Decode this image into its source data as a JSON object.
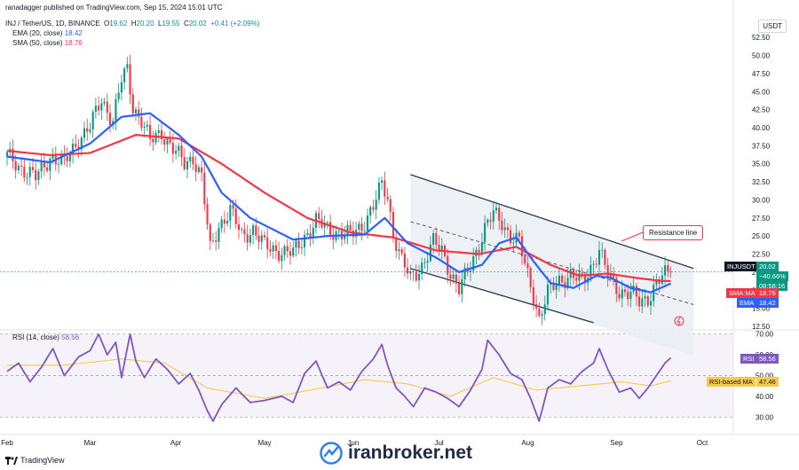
{
  "meta": {
    "publisher": "ranadagger published on TradingView.com, Sep 15, 2024 15:01 UTC",
    "watermark": "iranbroker.net",
    "tv_logo": "TradingView",
    "currency_button": "USDT"
  },
  "header": {
    "symbol": "INJ / TetherUS, 1D, BINANCE",
    "ohlc": {
      "o_label": "O",
      "o": "19.62",
      "h_label": "H",
      "h": "20.20",
      "l_label": "L",
      "l": "19.55",
      "c_label": "C",
      "c": "20.02",
      "chg": "+0.41 (+2.09%)"
    },
    "ema_label": "EMA (20, close)",
    "ema_value": "18.42",
    "sma_label": "SMA (50, close)",
    "sma_value": "18.76",
    "rsi_label": "RSI (14, close)",
    "rsi_value": "58.56"
  },
  "tags": {
    "price_symbol": "INJUSDT",
    "price_value": "20.02",
    "price_change": "−40.66%",
    "price_timer": "08:58:16",
    "sma_name": "SMA:MA",
    "sma_value": "18.76",
    "ema_name": "EMA",
    "ema_value": "18.42",
    "rsi_name": "RSI",
    "rsi_value": "58.56",
    "rsima_name": "RSI-based MA",
    "rsima_value": "47.46"
  },
  "annotation": {
    "text": "Resistance line"
  },
  "colors": {
    "up": "#089981",
    "down": "#f23645",
    "ema": "#2962ff",
    "sma": "#f23645",
    "rsi": "#7e57c2",
    "rsi_ma": "#f7c948",
    "channel": "#2a3a4a",
    "channel_fill": "#e9edf3"
  },
  "chart_data": {
    "type": "candlestick",
    "price_axis": {
      "ticks": [
        12.5,
        15.0,
        17.5,
        20.0,
        22.5,
        25.0,
        27.5,
        30.0,
        32.5,
        35.0,
        37.5,
        40.0,
        42.5,
        45.0,
        47.5,
        50.0,
        52.5
      ],
      "range": [
        12.0,
        54.0
      ]
    },
    "rsi_axis": {
      "ticks": [
        30.0,
        40.0,
        50.0,
        60.0,
        70.0
      ],
      "range": [
        25,
        72
      ],
      "band": [
        30,
        70
      ]
    },
    "x_labels": [
      "Feb",
      "Mar",
      "Apr",
      "May",
      "Jun",
      "Jul",
      "Aug",
      "Sep",
      "Oct"
    ],
    "x_label_days": [
      0,
      29,
      59,
      90,
      121,
      151,
      182,
      213,
      243
    ],
    "days_total": 252,
    "close_key": [
      [
        0,
        36.0
      ],
      [
        5,
        34.5
      ],
      [
        10,
        33.0
      ],
      [
        15,
        36.0
      ],
      [
        20,
        35.0
      ],
      [
        25,
        38.5
      ],
      [
        29,
        40.0
      ],
      [
        33,
        44.0
      ],
      [
        37,
        41.0
      ],
      [
        40,
        46.5
      ],
      [
        42,
        48.0
      ],
      [
        44,
        43.0
      ],
      [
        47,
        41.0
      ],
      [
        50,
        38.0
      ],
      [
        54,
        39.5
      ],
      [
        58,
        37.0
      ],
      [
        62,
        35.0
      ],
      [
        65,
        36.0
      ],
      [
        68,
        33.0
      ],
      [
        71,
        23.0
      ],
      [
        74,
        26.5
      ],
      [
        78,
        28.5
      ],
      [
        82,
        25.0
      ],
      [
        86,
        26.0
      ],
      [
        90,
        23.5
      ],
      [
        95,
        23.0
      ],
      [
        100,
        22.5
      ],
      [
        104,
        25.0
      ],
      [
        108,
        27.0
      ],
      [
        112,
        26.0
      ],
      [
        116,
        25.5
      ],
      [
        120,
        25.0
      ],
      [
        124,
        26.5
      ],
      [
        128,
        29.0
      ],
      [
        131,
        32.0
      ],
      [
        133,
        30.5
      ],
      [
        135,
        25.5
      ],
      [
        138,
        21.5
      ],
      [
        141,
        19.0
      ],
      [
        145,
        21.0
      ],
      [
        149,
        24.0
      ],
      [
        152,
        23.0
      ],
      [
        155,
        20.0
      ],
      [
        158,
        17.5
      ],
      [
        161,
        20.0
      ],
      [
        164,
        23.0
      ],
      [
        167,
        26.0
      ],
      [
        170,
        28.0
      ],
      [
        173,
        27.0
      ],
      [
        176,
        25.0
      ],
      [
        179,
        24.0
      ],
      [
        181,
        21.0
      ],
      [
        184,
        17.0
      ],
      [
        186,
        13.5
      ],
      [
        189,
        17.0
      ],
      [
        193,
        19.0
      ],
      [
        197,
        19.5
      ],
      [
        201,
        18.5
      ],
      [
        205,
        21.5
      ],
      [
        207,
        23.0
      ],
      [
        210,
        19.5
      ],
      [
        214,
        17.5
      ],
      [
        218,
        17.0
      ],
      [
        221,
        15.8
      ],
      [
        224,
        16.5
      ],
      [
        227,
        18.5
      ],
      [
        230,
        19.5
      ],
      [
        232,
        20.02
      ]
    ],
    "ema_key": [
      [
        0,
        36.0
      ],
      [
        15,
        35.2
      ],
      [
        29,
        37.8
      ],
      [
        40,
        41.5
      ],
      [
        50,
        42.0
      ],
      [
        60,
        39.0
      ],
      [
        68,
        36.0
      ],
      [
        75,
        31.0
      ],
      [
        85,
        27.5
      ],
      [
        100,
        24.5
      ],
      [
        112,
        25.0
      ],
      [
        125,
        25.2
      ],
      [
        132,
        27.5
      ],
      [
        140,
        24.0
      ],
      [
        150,
        22.0
      ],
      [
        158,
        20.0
      ],
      [
        166,
        21.0
      ],
      [
        172,
        24.0
      ],
      [
        178,
        24.8
      ],
      [
        184,
        21.5
      ],
      [
        190,
        18.5
      ],
      [
        198,
        17.8
      ],
      [
        206,
        19.5
      ],
      [
        211,
        19.2
      ],
      [
        218,
        17.8
      ],
      [
        225,
        17.2
      ],
      [
        232,
        18.42
      ]
    ],
    "sma_key": [
      [
        0,
        36.8
      ],
      [
        15,
        36.2
      ],
      [
        29,
        36.5
      ],
      [
        45,
        39.0
      ],
      [
        60,
        38.5
      ],
      [
        75,
        35.0
      ],
      [
        90,
        31.0
      ],
      [
        105,
        27.5
      ],
      [
        120,
        25.5
      ],
      [
        135,
        24.8
      ],
      [
        150,
        23.0
      ],
      [
        165,
        22.5
      ],
      [
        178,
        23.5
      ],
      [
        190,
        21.0
      ],
      [
        200,
        19.5
      ],
      [
        210,
        19.8
      ],
      [
        220,
        19.2
      ],
      [
        228,
        18.8
      ],
      [
        232,
        18.76
      ]
    ],
    "rsi_key": [
      [
        0,
        52
      ],
      [
        4,
        56
      ],
      [
        8,
        47
      ],
      [
        12,
        54
      ],
      [
        16,
        63
      ],
      [
        20,
        50
      ],
      [
        25,
        59
      ],
      [
        29,
        62
      ],
      [
        32,
        70
      ],
      [
        35,
        60
      ],
      [
        38,
        66
      ],
      [
        40,
        49
      ],
      [
        43,
        70
      ],
      [
        45,
        57
      ],
      [
        48,
        49
      ],
      [
        52,
        58
      ],
      [
        56,
        53
      ],
      [
        60,
        46
      ],
      [
        64,
        51
      ],
      [
        67,
        43
      ],
      [
        70,
        33
      ],
      [
        72,
        28
      ],
      [
        75,
        36
      ],
      [
        80,
        44
      ],
      [
        85,
        37
      ],
      [
        90,
        38
      ],
      [
        96,
        40
      ],
      [
        100,
        37
      ],
      [
        104,
        51
      ],
      [
        108,
        57
      ],
      [
        112,
        44
      ],
      [
        116,
        47
      ],
      [
        120,
        43
      ],
      [
        124,
        52
      ],
      [
        128,
        58
      ],
      [
        131,
        65
      ],
      [
        133,
        55
      ],
      [
        136,
        44
      ],
      [
        139,
        40
      ],
      [
        142,
        35
      ],
      [
        146,
        44
      ],
      [
        150,
        42
      ],
      [
        154,
        39
      ],
      [
        158,
        35
      ],
      [
        162,
        43
      ],
      [
        166,
        53
      ],
      [
        168,
        67
      ],
      [
        172,
        60
      ],
      [
        176,
        51
      ],
      [
        180,
        48
      ],
      [
        183,
        39
      ],
      [
        186,
        28
      ],
      [
        189,
        44
      ],
      [
        193,
        48
      ],
      [
        197,
        46
      ],
      [
        201,
        52
      ],
      [
        205,
        56
      ],
      [
        207,
        63
      ],
      [
        210,
        53
      ],
      [
        214,
        42
      ],
      [
        218,
        44
      ],
      [
        221,
        39
      ],
      [
        224,
        44
      ],
      [
        227,
        50
      ],
      [
        230,
        56
      ],
      [
        232,
        58.56
      ]
    ],
    "rsi_ma_key": [
      [
        0,
        55
      ],
      [
        20,
        55
      ],
      [
        40,
        58
      ],
      [
        55,
        56
      ],
      [
        70,
        44
      ],
      [
        90,
        39
      ],
      [
        110,
        44
      ],
      [
        125,
        48
      ],
      [
        140,
        46
      ],
      [
        155,
        40
      ],
      [
        170,
        49
      ],
      [
        185,
        43
      ],
      [
        200,
        45
      ],
      [
        215,
        47
      ],
      [
        225,
        45
      ],
      [
        232,
        47.46
      ]
    ],
    "channel": {
      "upper": [
        [
          141,
          33.5
        ],
        [
          240,
          20.5
        ]
      ],
      "lower": [
        [
          141,
          20.5
        ],
        [
          205,
          13.0
        ]
      ],
      "mid": [
        [
          141,
          27.0
        ],
        [
          240,
          15.5
        ]
      ]
    },
    "current_price": 20.02
  }
}
